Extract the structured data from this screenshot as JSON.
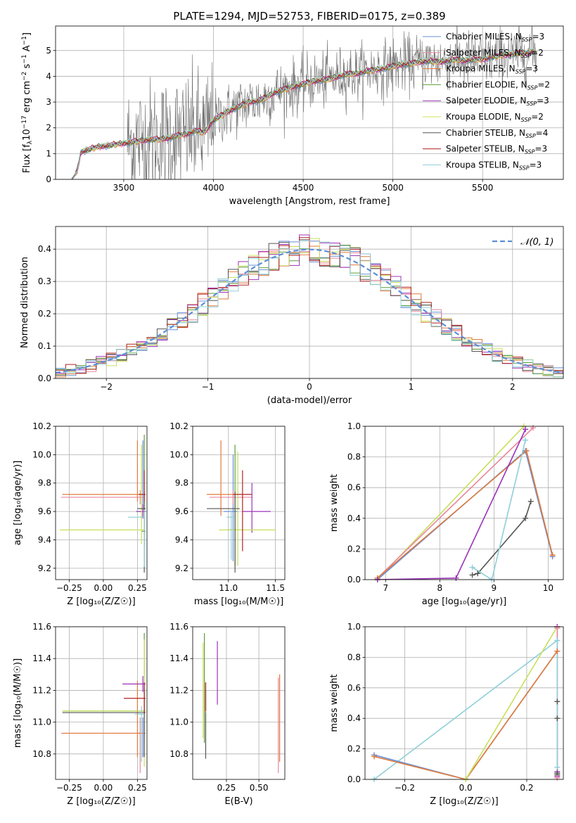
{
  "figure": {
    "title": "PLATE=1294, MJD=52753, FIBERID=0175, z=0.389",
    "colors": {
      "Chabrier MILES": "#6a8fd8",
      "Salpeter MILES": "#e8879c",
      "Kroupa MILES": "#e07a3a",
      "Chabrier ELODIE": "#5c9e3a",
      "Salpeter ELODIE": "#9b33b8",
      "Kroupa ELODIE": "#c8e05a",
      "Chabrier STELIB": "#555555",
      "Salpeter STELIB": "#b22222",
      "Kroupa STELIB": "#8ecfd8",
      "observed": "#6e6e6e",
      "gauss": "#5b8fd6"
    }
  },
  "chart_data": [
    {
      "id": "spectrum",
      "type": "line",
      "xlabel": "wavelength [Angstrom, rest frame]",
      "ylabel_parts": [
        "Flux [f",
        "λ",
        "10",
        "−17",
        " erg cm",
        "−2",
        " s",
        "−1",
        " A",
        "−1",
        "]"
      ],
      "xlim": [
        3120,
        5950
      ],
      "ylim": [
        0,
        5.95
      ],
      "xticks": [
        3500,
        4000,
        4500,
        5000,
        5500
      ],
      "xtick_labels": [
        "3500",
        "4000",
        "4500",
        "5000",
        "5500"
      ],
      "yticks": [
        0,
        1,
        2,
        3,
        4,
        5
      ],
      "ytick_labels": [
        "0",
        "1",
        "2",
        "3",
        "4",
        "5"
      ],
      "legend": "upper right",
      "legend_entries": [
        {
          "label": "Chabrier MILES, N",
          "sub": "SSP",
          "suffix": "=3"
        },
        {
          "label": "Salpeter MILES, N",
          "sub": "SSP",
          "suffix": "=2"
        },
        {
          "label": "Kroupa MILES, N",
          "sub": "SSP",
          "suffix": "=3"
        },
        {
          "label": "Chabrier ELODIE, N",
          "sub": "SSP",
          "suffix": "=2"
        },
        {
          "label": "Salpeter ELODIE, N",
          "sub": "SSP",
          "suffix": "=3"
        },
        {
          "label": "Kroupa ELODIE, N",
          "sub": "SSP",
          "suffix": "=2"
        },
        {
          "label": "Chabrier STELIB, N",
          "sub": "SSP",
          "suffix": "=4"
        },
        {
          "label": "Salpeter STELIB, N",
          "sub": "SSP",
          "suffix": "=3"
        },
        {
          "label": "Kroupa STELIB, N",
          "sub": "SSP",
          "suffix": "=3"
        }
      ],
      "model_curve": {
        "x": [
          3210,
          3240,
          3260,
          3300,
          3350,
          3400,
          3450,
          3500,
          3550,
          3600,
          3650,
          3700,
          3750,
          3800,
          3850,
          3900,
          3950,
          4000,
          4050,
          4100,
          4150,
          4200,
          4250,
          4300,
          4350,
          4400,
          4450,
          4500,
          4550,
          4600,
          4650,
          4700,
          4750,
          4800,
          4850,
          4900,
          4950,
          5000,
          5050,
          5100,
          5150,
          5200,
          5250,
          5300,
          5350,
          5400,
          5450,
          5500,
          5550,
          5600,
          5650,
          5700,
          5750,
          5800
        ],
        "y": [
          0.0,
          0.3,
          1.05,
          1.15,
          1.25,
          1.3,
          1.35,
          1.4,
          1.45,
          1.5,
          1.55,
          1.55,
          1.6,
          1.7,
          1.75,
          1.9,
          1.8,
          2.3,
          2.5,
          2.7,
          2.85,
          3.0,
          3.05,
          3.2,
          3.4,
          3.5,
          3.6,
          3.7,
          3.8,
          3.85,
          3.9,
          4.0,
          4.1,
          4.1,
          4.2,
          4.25,
          4.3,
          4.4,
          4.45,
          4.5,
          4.55,
          4.6,
          4.55,
          4.6,
          4.65,
          4.6,
          4.65,
          4.65,
          4.75,
          4.8,
          4.85,
          4.9,
          4.9,
          5.0
        ]
      },
      "observed": {
        "x_range": [
          3520,
          5800
        ],
        "noise_scale": [
          1.2,
          0.55
        ]
      }
    },
    {
      "id": "residuals",
      "type": "histogram",
      "xlabel": "(data-model)/error",
      "ylabel": "Normed distribution",
      "xlim": [
        -2.5,
        2.5
      ],
      "ylim": [
        0,
        0.47
      ],
      "xticks": [
        -2,
        -1,
        0,
        1,
        2
      ],
      "xtick_labels": [
        "−2",
        "−1",
        "0",
        "1",
        "2"
      ],
      "yticks": [
        0.0,
        0.1,
        0.2,
        0.3,
        0.4
      ],
      "ytick_labels": [
        "0.0",
        "0.1",
        "0.2",
        "0.3",
        "0.4"
      ],
      "gauss_label": "𝒩(0, 1)",
      "bin_width": 0.1
    },
    {
      "id": "age_vs_Z",
      "type": "scatter",
      "xlabel": "Z [log₁₀(Z/Z☉)]",
      "ylabel": "age  [log₁₀(age/yr)]",
      "xlim": [
        -0.35,
        0.32
      ],
      "ylim": [
        9.12,
        10.2
      ],
      "xticks": [
        -0.25,
        0.0,
        0.25
      ],
      "xtick_labels": [
        "−0.25",
        "0.00",
        "0.25"
      ],
      "yticks": [
        9.2,
        9.4,
        9.6,
        9.8,
        10.0,
        10.2
      ],
      "ytick_labels": [
        "9.2",
        "9.4",
        "9.6",
        "9.8",
        "10.0",
        "10.2"
      ],
      "errorbars": [
        {
          "m": "Chabrier MILES",
          "x": 0.29,
          "xerr": [
            0.04,
            0.02
          ],
          "y": 9.6,
          "yerr": [
            0.04,
            0.5
          ]
        },
        {
          "m": "Salpeter MILES",
          "x": 0.27,
          "xerr": [
            0.58,
            0.03
          ],
          "y": 9.7,
          "yerr": [
            0.05,
            0.05
          ]
        },
        {
          "m": "Kroupa MILES",
          "x": 0.25,
          "xerr": [
            0.55,
            0.04
          ],
          "y": 9.72,
          "yerr": [
            0.05,
            0.38
          ]
        },
        {
          "m": "Chabrier ELODIE",
          "x": 0.3,
          "xerr": [
            0.02,
            0.01
          ],
          "y": 9.46,
          "yerr": [
            0.1,
            0.68
          ]
        },
        {
          "m": "Salpeter ELODIE",
          "x": 0.29,
          "xerr": [
            0.05,
            0.02
          ],
          "y": 9.6,
          "yerr": [
            0.05,
            0.05
          ]
        },
        {
          "m": "Kroupa ELODIE",
          "x": 0.28,
          "xerr": [
            0.6,
            0.02
          ],
          "y": 9.47,
          "yerr": [
            0.1,
            0.6
          ]
        },
        {
          "m": "Chabrier STELIB",
          "x": 0.3,
          "xerr": [
            0.05,
            0.01
          ],
          "y": 9.62,
          "yerr": [
            0.45,
            0.12
          ]
        },
        {
          "m": "Salpeter STELIB",
          "x": 0.3,
          "xerr": [
            0.04,
            0.01
          ],
          "y": 9.72,
          "yerr": [
            0.05,
            0.17
          ]
        },
        {
          "m": "Kroupa STELIB",
          "x": 0.3,
          "xerr": [
            0.12,
            0.01
          ],
          "y": 9.56,
          "yerr": [
            0.35,
            0.05
          ]
        }
      ]
    },
    {
      "id": "age_vs_mass",
      "type": "scatter",
      "xlabel": "mass [log₁₀(M/M☉)]",
      "ylabel": "",
      "xlim": [
        10.62,
        11.6
      ],
      "ylim": [
        9.12,
        10.2
      ],
      "xticks": [
        11.0,
        11.5
      ],
      "xtick_labels": [
        "11.0",
        "11.5"
      ],
      "yticks": [
        9.2,
        9.4,
        9.6,
        9.8,
        10.0,
        10.2
      ],
      "ytick_labels": [
        "9.2",
        "9.4",
        "9.6",
        "9.8",
        "10.0",
        "10.2"
      ],
      "errorbars": [
        {
          "m": "Chabrier MILES",
          "x": 11.05,
          "xerr": [
            0.1,
            0.05
          ],
          "y": 9.6,
          "yerr": [
            0.35,
            0.4
          ]
        },
        {
          "m": "Salpeter MILES",
          "x": 11.05,
          "xerr": [
            0.25,
            0.2
          ],
          "y": 9.7,
          "yerr": [
            0.05,
            0.05
          ]
        },
        {
          "m": "Kroupa MILES",
          "x": 10.92,
          "xerr": [
            0.15,
            0.15
          ],
          "y": 9.72,
          "yerr": [
            0.15,
            0.38
          ]
        },
        {
          "m": "Chabrier ELODIE",
          "x": 11.07,
          "xerr": [
            0.08,
            0.05
          ],
          "y": 9.47,
          "yerr": [
            0.25,
            0.6
          ]
        },
        {
          "m": "Salpeter ELODIE",
          "x": 11.25,
          "xerr": [
            0.1,
            0.2
          ],
          "y": 9.6,
          "yerr": [
            0.15,
            0.2
          ]
        },
        {
          "m": "Kroupa ELODIE",
          "x": 11.1,
          "xerr": [
            0.2,
            0.4
          ],
          "y": 9.47,
          "yerr": [
            0.25,
            0.55
          ]
        },
        {
          "m": "Chabrier STELIB",
          "x": 11.07,
          "xerr": [
            0.3,
            0.05
          ],
          "y": 9.62,
          "yerr": [
            0.45,
            0.12
          ]
        },
        {
          "m": "Salpeter STELIB",
          "x": 11.15,
          "xerr": [
            0.1,
            0.1
          ],
          "y": 9.72,
          "yerr": [
            0.4,
            0.17
          ]
        },
        {
          "m": "Kroupa STELIB",
          "x": 11.03,
          "xerr": [
            0.05,
            0.03
          ],
          "y": 9.56,
          "yerr": [
            0.3,
            0.05
          ]
        }
      ]
    },
    {
      "id": "weight_vs_age",
      "type": "line",
      "xlabel": "age  [log₁₀(age/yr)]",
      "ylabel": "mass weight",
      "xlim": [
        6.62,
        10.28
      ],
      "ylim": [
        0,
        1
      ],
      "xticks": [
        7,
        8,
        9,
        10
      ],
      "xtick_labels": [
        "7",
        "8",
        "9",
        "10"
      ],
      "yticks": [
        0.0,
        0.2,
        0.4,
        0.6,
        0.8,
        1.0
      ],
      "ytick_labels": [
        "0.0",
        "0.2",
        "0.4",
        "0.6",
        "0.8",
        "1.0"
      ],
      "series": [
        {
          "m": "Kroupa ELODIE",
          "x": [
            6.85,
            9.55
          ],
          "y": [
            0.0,
            1.0
          ]
        },
        {
          "m": "Salpeter MILES",
          "x": [
            6.85,
            9.72
          ],
          "y": [
            0.01,
            0.99
          ]
        },
        {
          "m": "Chabrier MILES",
          "x": [
            6.85,
            9.58,
            10.08
          ],
          "y": [
            0.0,
            0.84,
            0.15
          ]
        },
        {
          "m": "Kroupa MILES",
          "x": [
            6.85,
            9.6,
            10.08
          ],
          "y": [
            0.01,
            0.84,
            0.16
          ]
        },
        {
          "m": "Salpeter ELODIE",
          "x": [
            6.85,
            8.3,
            9.58
          ],
          "y": [
            0.0,
            0.01,
            0.98
          ]
        },
        {
          "m": "Chabrier STELIB",
          "x": [
            8.6,
            8.7,
            9.58,
            9.68
          ],
          "y": [
            0.03,
            0.04,
            0.4,
            0.51
          ]
        },
        {
          "m": "Kroupa STELIB",
          "x": [
            8.6,
            8.96,
            9.58
          ],
          "y": [
            0.08,
            0.0,
            0.91
          ]
        }
      ]
    },
    {
      "id": "mass_vs_Z",
      "type": "scatter",
      "xlabel": "Z [log₁₀(Z/Z☉)]",
      "ylabel": "mass [log₁₀(M/M☉)]",
      "xlim": [
        -0.35,
        0.32
      ],
      "ylim": [
        10.64,
        11.6
      ],
      "xticks": [
        -0.25,
        0.0,
        0.25
      ],
      "xtick_labels": [
        "−0.25",
        "0.00",
        "0.25"
      ],
      "yticks": [
        10.8,
        11.0,
        11.2,
        11.4,
        11.6
      ],
      "ytick_labels": [
        "10.8",
        "11.0",
        "11.2",
        "11.4",
        "11.6"
      ],
      "errorbars": [
        {
          "m": "Chabrier MILES",
          "x": 0.29,
          "xerr": [
            0.04,
            0.02
          ],
          "y": 10.93,
          "yerr": [
            0.15,
            0.1
          ]
        },
        {
          "m": "Salpeter MILES",
          "x": 0.27,
          "xerr": [
            0.58,
            0.03
          ],
          "y": 10.93,
          "yerr": [
            0.25,
            0.1
          ]
        },
        {
          "m": "Kroupa MILES",
          "x": 0.25,
          "xerr": [
            0.55,
            0.04
          ],
          "y": 10.93,
          "yerr": [
            0.15,
            0.33
          ]
        },
        {
          "m": "Chabrier ELODIE",
          "x": 0.3,
          "xerr": [
            0.6,
            0.01
          ],
          "y": 11.07,
          "yerr": [
            0.2,
            0.49
          ]
        },
        {
          "m": "Salpeter ELODIE",
          "x": 0.29,
          "xerr": [
            0.15,
            0.02
          ],
          "y": 11.24,
          "yerr": [
            0.05,
            0.05
          ]
        },
        {
          "m": "Kroupa ELODIE",
          "x": 0.3,
          "xerr": [
            0.6,
            0.01
          ],
          "y": 11.07,
          "yerr": [
            0.35,
            0.45
          ]
        },
        {
          "m": "Chabrier STELIB",
          "x": 0.3,
          "xerr": [
            0.6,
            0.01
          ],
          "y": 11.06,
          "yerr": [
            0.28,
            0.15
          ]
        },
        {
          "m": "Salpeter STELIB",
          "x": 0.3,
          "xerr": [
            0.15,
            0.01
          ],
          "y": 11.15,
          "yerr": [
            0.1,
            0.1
          ]
        },
        {
          "m": "Kroupa STELIB",
          "x": 0.28,
          "xerr": [
            0.05,
            0.02
          ],
          "y": 11.05,
          "yerr": [
            0.3,
            0.05
          ]
        }
      ]
    },
    {
      "id": "mass_vs_ebv",
      "type": "scatter",
      "xlabel": "E(B-V)",
      "ylabel": "",
      "xlim": [
        -0.01,
        0.7
      ],
      "ylim": [
        10.64,
        11.6
      ],
      "xticks": [
        0.25,
        0.5
      ],
      "xtick_labels": [
        "0.25",
        "0.50"
      ],
      "yticks": [
        10.8,
        11.0,
        11.2,
        11.4,
        11.6
      ],
      "ytick_labels": [
        "10.8",
        "11.0",
        "11.2",
        "11.4",
        "11.6"
      ],
      "errorbars": [
        {
          "m": "Kroupa ELODIE",
          "x": 0.07,
          "xerr": [
            0,
            0
          ],
          "y": 11.2,
          "yerr": [
            0.3,
            0.3
          ]
        },
        {
          "m": "Chabrier ELODIE",
          "x": 0.08,
          "xerr": [
            0,
            0
          ],
          "y": 11.2,
          "yerr": [
            0.33,
            0.36
          ]
        },
        {
          "m": "Chabrier STELIB",
          "x": 0.09,
          "xerr": [
            0,
            0
          ],
          "y": 11.05,
          "yerr": [
            0.28,
            0.15
          ]
        },
        {
          "m": "Kroupa MILES",
          "x": 0.09,
          "xerr": [
            0,
            0
          ],
          "y": 11.13,
          "yerr": [
            0.07,
            0.12
          ]
        },
        {
          "m": "Salpeter STELIB",
          "x": 0.09,
          "xerr": [
            0,
            0
          ],
          "y": 11.15,
          "yerr": [
            0.08,
            0.1
          ]
        },
        {
          "m": "Salpeter ELODIE",
          "x": 0.18,
          "xerr": [
            0,
            0
          ],
          "y": 11.31,
          "yerr": [
            0.2,
            0.2
          ]
        },
        {
          "m": "Salpeter MILES",
          "x": 0.65,
          "xerr": [
            0,
            0
          ],
          "y": 11.0,
          "yerr": [
            0.32,
            0.28
          ]
        },
        {
          "m": "Kroupa MILES",
          "x": 0.66,
          "xerr": [
            0,
            0
          ],
          "y": 11.0,
          "yerr": [
            0.25,
            0.3
          ]
        }
      ]
    },
    {
      "id": "weight_vs_Z",
      "type": "line",
      "xlabel": "Z [log₁₀(Z/Z☉)]",
      "ylabel": "mass weight",
      "xlim": [
        -0.33,
        0.32
      ],
      "ylim": [
        0,
        1
      ],
      "xticks": [
        -0.2,
        0.0,
        0.2
      ],
      "xtick_labels": [
        "−0.2",
        "0.0",
        "0.2"
      ],
      "yticks": [
        0.0,
        0.2,
        0.4,
        0.6,
        0.8,
        1.0
      ],
      "ytick_labels": [
        "0.0",
        "0.2",
        "0.4",
        "0.6",
        "0.8",
        "1.0"
      ],
      "series": [
        {
          "m": "Kroupa STELIB",
          "x": [
            -0.3,
            0.3
          ],
          "y": [
            0.0,
            0.91
          ]
        },
        {
          "m": "Chabrier MILES",
          "x": [
            -0.3,
            0.0,
            0.3
          ],
          "y": [
            0.16,
            0.0,
            0.84
          ]
        },
        {
          "m": "Kroupa MILES",
          "x": [
            -0.3,
            0.0,
            0.3
          ],
          "y": [
            0.15,
            0.0,
            0.84
          ]
        },
        {
          "m": "Kroupa ELODIE",
          "x": [
            0.0,
            0.3
          ],
          "y": [
            0.0,
            1.0
          ]
        },
        {
          "m": "Salpeter ELODIE",
          "x": [
            0.3,
            0.3,
            0.3
          ],
          "y": [
            0.02,
            0.05,
            1.0
          ]
        },
        {
          "m": "Chabrier STELIB",
          "x": [
            0.3,
            0.3,
            0.3,
            0.3
          ],
          "y": [
            0.03,
            0.04,
            0.4,
            0.51
          ]
        },
        {
          "m": "Salpeter MILES",
          "x": [
            0.3,
            0.3
          ],
          "y": [
            0.01,
            0.99
          ]
        },
        {
          "m": "Kroupa STELIB",
          "x": [
            0.3,
            0.3
          ],
          "y": [
            0.08,
            0.91
          ]
        }
      ]
    }
  ]
}
